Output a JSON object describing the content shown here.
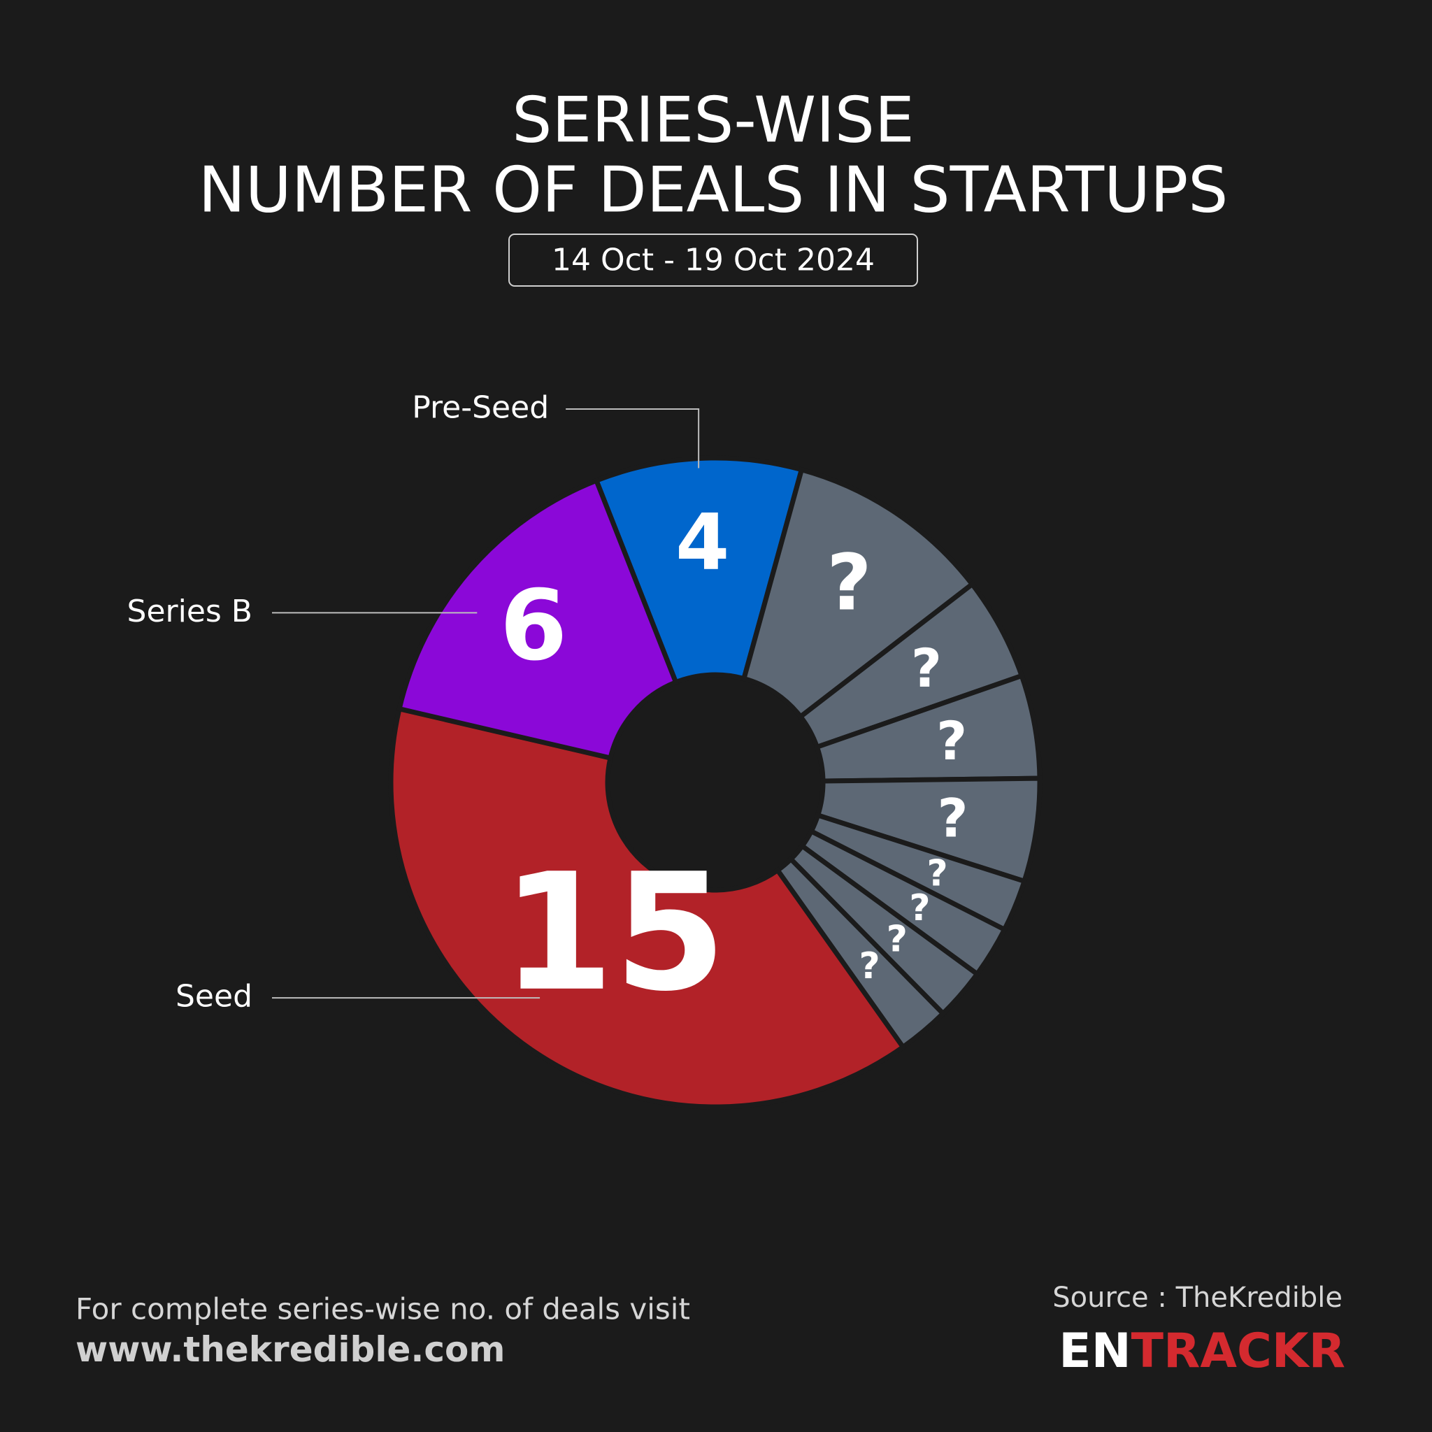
{
  "chart_data": {
    "type": "donut",
    "title": [
      "SERIES-WISE",
      "NUMBER OF DEALS IN STARTUPS"
    ],
    "date_range": "14 Oct - 19 Oct 2024",
    "categories": [
      "Pre-Seed",
      null,
      null,
      null,
      null,
      null,
      null,
      null,
      null,
      "Seed",
      "Series B"
    ],
    "values": [
      4,
      4,
      2,
      2,
      2,
      1,
      1,
      1,
      1,
      15,
      6
    ],
    "value_labels": [
      "4",
      "?",
      "?",
      "?",
      "?",
      "?",
      "?",
      "?",
      "?",
      "15",
      "6"
    ],
    "colors": [
      "#0066cc",
      "#5d6875",
      "#5d6875",
      "#5d6875",
      "#5d6875",
      "#5d6875",
      "#5d6875",
      "#5d6875",
      "#5d6875",
      "#b22228",
      "#8b08d8"
    ],
    "footer_note": "For complete series-wise no. of deals visit",
    "footer_url": "www.thekredible.com",
    "source": "Source : TheKredible",
    "logo": {
      "part1": "EN",
      "part2": "TRACKR"
    }
  }
}
